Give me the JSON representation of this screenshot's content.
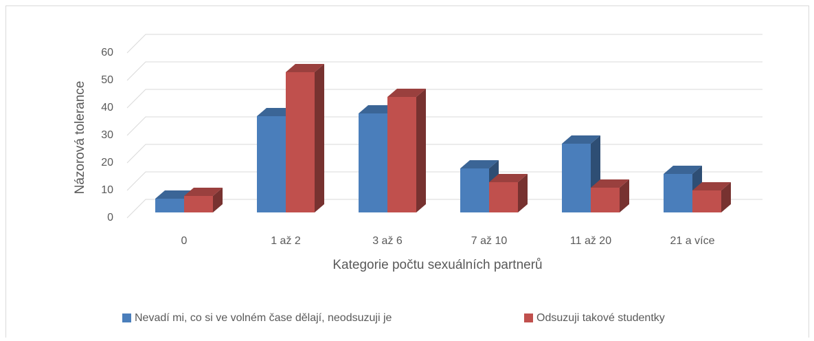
{
  "chart_data": {
    "type": "bar3d",
    "categories": [
      "0",
      "1 až 2",
      "3 až 6",
      "7 až 10",
      "11 až 20",
      "21 a více"
    ],
    "series": [
      {
        "name": "Nevadí mi, co si ve volném čase dělají, neodsuzuji je",
        "color": "#4a7ebb",
        "values": [
          5,
          35,
          36,
          16,
          25,
          14
        ]
      },
      {
        "name": "Odsuzuji takové studentky",
        "color": "#c0504d",
        "values": [
          6,
          51,
          42,
          11,
          9,
          8
        ]
      }
    ],
    "x_label": "Kategorie počtu sexuálních partnerů",
    "y_label": "Názorová tolerance",
    "ylim": [
      0,
      60
    ],
    "yticks": [
      0,
      10,
      20,
      30,
      40,
      50,
      60
    ],
    "grid": true,
    "legend": "bottom"
  }
}
